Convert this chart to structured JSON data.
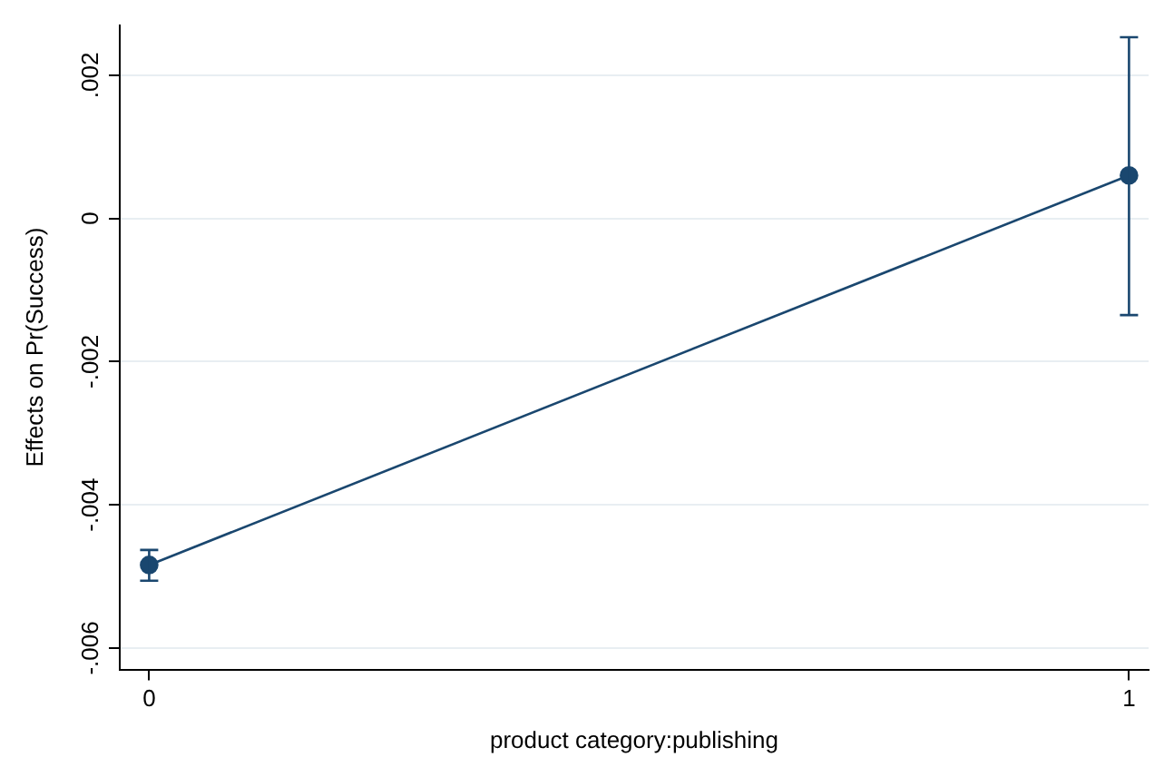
{
  "chart_data": {
    "type": "line",
    "xlabel": "product category:publishing",
    "ylabel": "Effects on Pr(Success)",
    "x": [
      0,
      1
    ],
    "series": [
      {
        "color": "#1a476f",
        "values": [
          -0.00484,
          0.0006
        ],
        "errors": [
          [
            -0.00506,
            -0.00463
          ],
          [
            -0.00135,
            0.00253
          ]
        ]
      }
    ],
    "xlim": [
      -0.03,
      1.02
    ],
    "xticks": [
      0,
      1
    ],
    "ylim": [
      -0.0063,
      0.0027
    ],
    "yticks": [
      {
        "value": -0.006,
        "label": "-.006"
      },
      {
        "value": -0.004,
        "label": "-.004"
      },
      {
        "value": -0.002,
        "label": "-.002"
      },
      0,
      {
        "value": 0.002,
        "label": ".002"
      }
    ],
    "grid": "y",
    "marker": "circle",
    "line_style": "solid",
    "legend": false
  }
}
